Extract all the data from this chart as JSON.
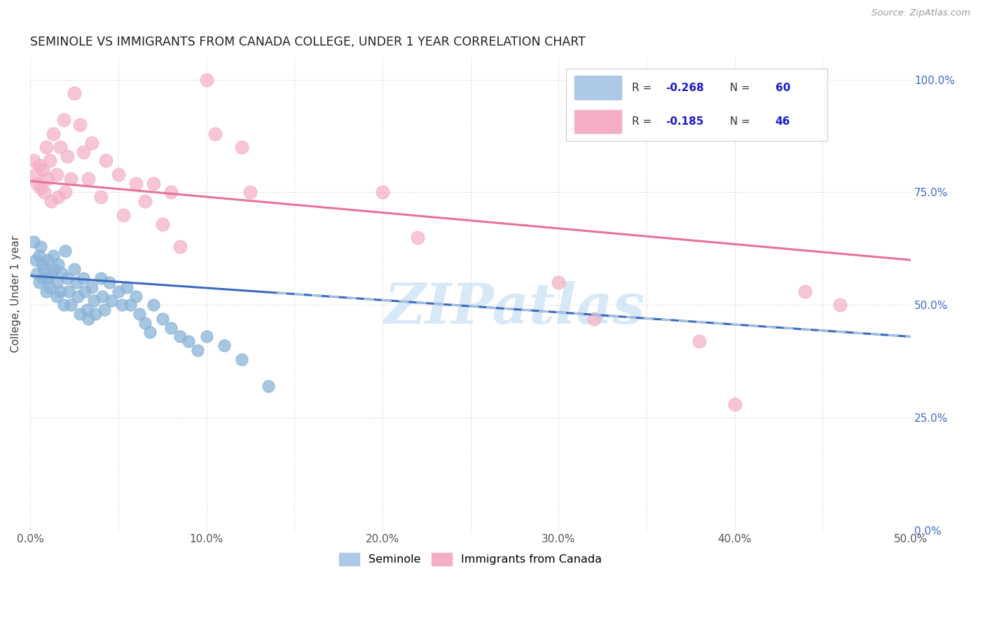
{
  "title": "SEMINOLE VS IMMIGRANTS FROM CANADA COLLEGE, UNDER 1 YEAR CORRELATION CHART",
  "source": "Source: ZipAtlas.com",
  "ylabel_label": "College, Under 1 year",
  "seminole_color": "#8ab4d8",
  "canada_color": "#f4afc4",
  "seminole_line_color": "#3a6bbf",
  "canada_line_color": "#e8729a",
  "dash_color": "#a8c4e0",
  "r_value_color": "#1a1acd",
  "background_color": "#ffffff",
  "grid_color": "#cccccc",
  "watermark_text": "ZIPatlas",
  "watermark_color": "#d0e5f5",
  "xlim": [
    0.0,
    0.5
  ],
  "ylim": [
    0.0,
    1.05
  ],
  "x_ticks": [
    0.0,
    0.1,
    0.2,
    0.3,
    0.4,
    0.5
  ],
  "y_ticks": [
    0.0,
    0.25,
    0.5,
    0.75,
    1.0
  ],
  "seminole_N": 60,
  "canada_N": 46,
  "seminole_R": -0.268,
  "canada_R": -0.185,
  "sem_intercept": 0.565,
  "sem_slope": -0.268,
  "can_intercept": 0.775,
  "can_slope": -0.185,
  "seminole_points": [
    [
      0.002,
      0.64
    ],
    [
      0.003,
      0.6
    ],
    [
      0.004,
      0.57
    ],
    [
      0.005,
      0.61
    ],
    [
      0.005,
      0.55
    ],
    [
      0.006,
      0.63
    ],
    [
      0.007,
      0.59
    ],
    [
      0.007,
      0.56
    ],
    [
      0.008,
      0.58
    ],
    [
      0.009,
      0.53
    ],
    [
      0.01,
      0.6
    ],
    [
      0.01,
      0.56
    ],
    [
      0.011,
      0.54
    ],
    [
      0.012,
      0.57
    ],
    [
      0.013,
      0.61
    ],
    [
      0.014,
      0.58
    ],
    [
      0.015,
      0.55
    ],
    [
      0.015,
      0.52
    ],
    [
      0.016,
      0.59
    ],
    [
      0.017,
      0.53
    ],
    [
      0.018,
      0.57
    ],
    [
      0.019,
      0.5
    ],
    [
      0.02,
      0.62
    ],
    [
      0.021,
      0.56
    ],
    [
      0.022,
      0.53
    ],
    [
      0.023,
      0.5
    ],
    [
      0.025,
      0.58
    ],
    [
      0.026,
      0.55
    ],
    [
      0.027,
      0.52
    ],
    [
      0.028,
      0.48
    ],
    [
      0.03,
      0.56
    ],
    [
      0.031,
      0.53
    ],
    [
      0.032,
      0.49
    ],
    [
      0.033,
      0.47
    ],
    [
      0.035,
      0.54
    ],
    [
      0.036,
      0.51
    ],
    [
      0.037,
      0.48
    ],
    [
      0.04,
      0.56
    ],
    [
      0.041,
      0.52
    ],
    [
      0.042,
      0.49
    ],
    [
      0.045,
      0.55
    ],
    [
      0.046,
      0.51
    ],
    [
      0.05,
      0.53
    ],
    [
      0.052,
      0.5
    ],
    [
      0.055,
      0.54
    ],
    [
      0.057,
      0.5
    ],
    [
      0.06,
      0.52
    ],
    [
      0.062,
      0.48
    ],
    [
      0.065,
      0.46
    ],
    [
      0.068,
      0.44
    ],
    [
      0.07,
      0.5
    ],
    [
      0.075,
      0.47
    ],
    [
      0.08,
      0.45
    ],
    [
      0.085,
      0.43
    ],
    [
      0.09,
      0.42
    ],
    [
      0.095,
      0.4
    ],
    [
      0.1,
      0.43
    ],
    [
      0.11,
      0.41
    ],
    [
      0.12,
      0.38
    ],
    [
      0.135,
      0.32
    ]
  ],
  "canada_points": [
    [
      0.002,
      0.82
    ],
    [
      0.003,
      0.79
    ],
    [
      0.004,
      0.77
    ],
    [
      0.005,
      0.81
    ],
    [
      0.006,
      0.76
    ],
    [
      0.007,
      0.8
    ],
    [
      0.008,
      0.75
    ],
    [
      0.009,
      0.85
    ],
    [
      0.01,
      0.78
    ],
    [
      0.011,
      0.82
    ],
    [
      0.012,
      0.73
    ],
    [
      0.013,
      0.88
    ],
    [
      0.015,
      0.79
    ],
    [
      0.016,
      0.74
    ],
    [
      0.017,
      0.85
    ],
    [
      0.019,
      0.91
    ],
    [
      0.02,
      0.75
    ],
    [
      0.021,
      0.83
    ],
    [
      0.023,
      0.78
    ],
    [
      0.025,
      0.97
    ],
    [
      0.028,
      0.9
    ],
    [
      0.03,
      0.84
    ],
    [
      0.033,
      0.78
    ],
    [
      0.035,
      0.86
    ],
    [
      0.04,
      0.74
    ],
    [
      0.043,
      0.82
    ],
    [
      0.05,
      0.79
    ],
    [
      0.053,
      0.7
    ],
    [
      0.06,
      0.77
    ],
    [
      0.065,
      0.73
    ],
    [
      0.07,
      0.77
    ],
    [
      0.075,
      0.68
    ],
    [
      0.08,
      0.75
    ],
    [
      0.085,
      0.63
    ],
    [
      0.1,
      1.0
    ],
    [
      0.105,
      0.88
    ],
    [
      0.12,
      0.85
    ],
    [
      0.125,
      0.75
    ],
    [
      0.2,
      0.75
    ],
    [
      0.22,
      0.65
    ],
    [
      0.3,
      0.55
    ],
    [
      0.32,
      0.47
    ],
    [
      0.38,
      0.42
    ],
    [
      0.4,
      0.28
    ],
    [
      0.44,
      0.53
    ],
    [
      0.46,
      0.5
    ]
  ]
}
